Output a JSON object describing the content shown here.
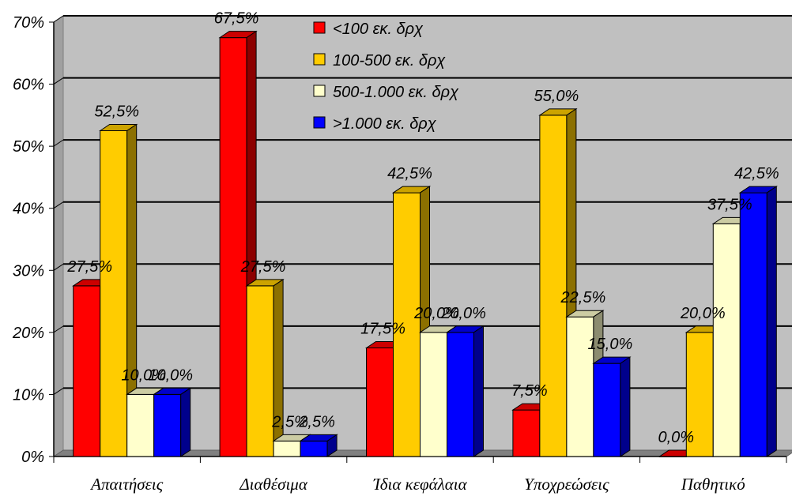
{
  "chart_data": {
    "type": "bar",
    "categories": [
      "Απαιτήσεις",
      "Διαθέσιμα",
      "Ίδια κεφάλαια",
      "Υποχρεώσεις",
      "Παθητικό"
    ],
    "series": [
      {
        "name": "<100 εκ. δρχ",
        "color": "#ff0000",
        "values": [
          27.5,
          67.5,
          17.5,
          7.5,
          0.0
        ],
        "labels": [
          "27,5%",
          "67,5%",
          "17,5%",
          "7,5%",
          "0,0%"
        ]
      },
      {
        "name": "100-500 εκ. δρχ",
        "color": "#ffcc00",
        "values": [
          52.5,
          27.5,
          42.5,
          55.0,
          20.0
        ],
        "labels": [
          "52,5%",
          "27,5%",
          "42,5%",
          "55,0%",
          "20,0%"
        ]
      },
      {
        "name": "500-1.000 εκ. δρχ",
        "color": "#ffffcc",
        "values": [
          10.0,
          2.5,
          20.0,
          22.5,
          37.5
        ],
        "labels": [
          "10,0%",
          "2,5%",
          "20,0%",
          "22,5%",
          "37,5%"
        ]
      },
      {
        "name": ">1.000 εκ. δρχ",
        "color": "#0000ff",
        "values": [
          10.0,
          2.5,
          20.0,
          15.0,
          42.5
        ],
        "labels": [
          "10,0%",
          "2,5%",
          "20,0%",
          "15,0%",
          "42,5%"
        ]
      }
    ],
    "ylim": [
      0,
      70
    ],
    "yticks": [
      "0%",
      "10%",
      "20%",
      "30%",
      "40%",
      "50%",
      "60%",
      "70%"
    ],
    "grid": true,
    "legend_position": "top-center",
    "wall_color": "#c0c0c0",
    "gridline_color": "#000000"
  }
}
